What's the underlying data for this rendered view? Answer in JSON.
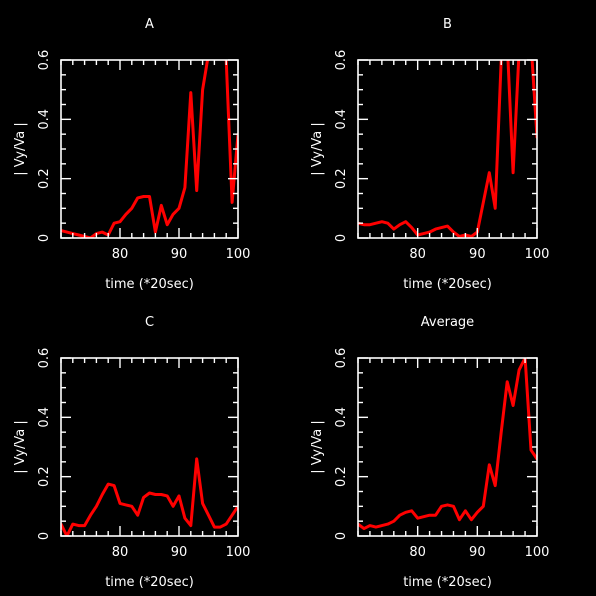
{
  "chart_data": [
    {
      "type": "line",
      "title": "A",
      "xlabel": "time (*20sec)",
      "ylabel": "| Vy/Va |",
      "xlim": [
        70,
        100
      ],
      "ylim": [
        0,
        0.6
      ],
      "xticks": [
        80,
        90,
        100
      ],
      "yticks": [
        0,
        0.2,
        0.4,
        0.6
      ],
      "series": [
        {
          "color": "#ff0000",
          "x": [
            70,
            71,
            72,
            73,
            74,
            75,
            76,
            77,
            78,
            79,
            80,
            81,
            82,
            83,
            84,
            85,
            86,
            87,
            88,
            89,
            90,
            91,
            92,
            93,
            94,
            95,
            96,
            97,
            98,
            99,
            100
          ],
          "y": [
            0.025,
            0.02,
            0.015,
            0.01,
            0.005,
            0.0,
            0.015,
            0.02,
            0.01,
            0.05,
            0.055,
            0.08,
            0.1,
            0.135,
            0.14,
            0.14,
            0.02,
            0.11,
            0.045,
            0.08,
            0.1,
            0.17,
            0.49,
            0.16,
            0.5,
            0.62,
            0.65,
            0.66,
            0.6,
            0.12,
            0.35
          ]
        }
      ]
    },
    {
      "type": "line",
      "title": "B",
      "xlabel": "time (*20sec)",
      "ylabel": "| Vy/Va |",
      "xlim": [
        70,
        100
      ],
      "ylim": [
        0,
        0.6
      ],
      "xticks": [
        80,
        90,
        100
      ],
      "yticks": [
        0,
        0.2,
        0.4,
        0.6
      ],
      "series": [
        {
          "color": "#ff0000",
          "x": [
            70,
            71,
            72,
            73,
            74,
            75,
            76,
            77,
            78,
            79,
            80,
            81,
            82,
            83,
            84,
            85,
            86,
            87,
            88,
            89,
            90,
            91,
            92,
            93,
            94,
            95,
            96,
            97,
            98,
            99,
            100
          ],
          "y": [
            0.05,
            0.045,
            0.045,
            0.05,
            0.055,
            0.05,
            0.03,
            0.045,
            0.055,
            0.035,
            0.01,
            0.015,
            0.02,
            0.03,
            0.035,
            0.04,
            0.02,
            0.005,
            0.01,
            0.005,
            0.02,
            0.12,
            0.22,
            0.1,
            0.6,
            0.66,
            0.22,
            0.63,
            0.64,
            0.66,
            0.34
          ]
        }
      ]
    },
    {
      "type": "line",
      "title": "C",
      "xlabel": "time (*20sec)",
      "ylabel": "| Vy/Va |",
      "xlim": [
        70,
        100
      ],
      "ylim": [
        0,
        0.6
      ],
      "xticks": [
        80,
        90,
        100
      ],
      "yticks": [
        0,
        0.2,
        0.4,
        0.6
      ],
      "series": [
        {
          "color": "#ff0000",
          "x": [
            70,
            71,
            72,
            73,
            74,
            75,
            76,
            77,
            78,
            79,
            80,
            81,
            82,
            83,
            84,
            85,
            86,
            87,
            88,
            89,
            90,
            91,
            92,
            93,
            94,
            95,
            96,
            97,
            98,
            99,
            100
          ],
          "y": [
            0.04,
            0.0,
            0.04,
            0.035,
            0.035,
            0.07,
            0.1,
            0.14,
            0.175,
            0.17,
            0.11,
            0.105,
            0.1,
            0.07,
            0.13,
            0.145,
            0.14,
            0.14,
            0.135,
            0.1,
            0.135,
            0.06,
            0.035,
            0.26,
            0.11,
            0.07,
            0.03,
            0.03,
            0.04,
            0.07,
            0.1
          ]
        }
      ]
    },
    {
      "type": "line",
      "title": "Average",
      "xlabel": "time (*20sec)",
      "ylabel": "| Vy/Va |",
      "xlim": [
        70,
        100
      ],
      "ylim": [
        0,
        0.6
      ],
      "xticks": [
        80,
        90,
        100
      ],
      "yticks": [
        0,
        0.2,
        0.4,
        0.6
      ],
      "series": [
        {
          "color": "#ff0000",
          "x": [
            70,
            71,
            72,
            73,
            74,
            75,
            76,
            77,
            78,
            79,
            80,
            81,
            82,
            83,
            84,
            85,
            86,
            87,
            88,
            89,
            90,
            91,
            92,
            93,
            94,
            95,
            96,
            97,
            98,
            99,
            100
          ],
          "y": [
            0.04,
            0.025,
            0.035,
            0.03,
            0.035,
            0.04,
            0.05,
            0.07,
            0.08,
            0.085,
            0.06,
            0.065,
            0.07,
            0.07,
            0.1,
            0.105,
            0.1,
            0.055,
            0.085,
            0.055,
            0.08,
            0.1,
            0.24,
            0.17,
            0.35,
            0.52,
            0.44,
            0.56,
            0.6,
            0.29,
            0.26
          ]
        }
      ]
    }
  ]
}
